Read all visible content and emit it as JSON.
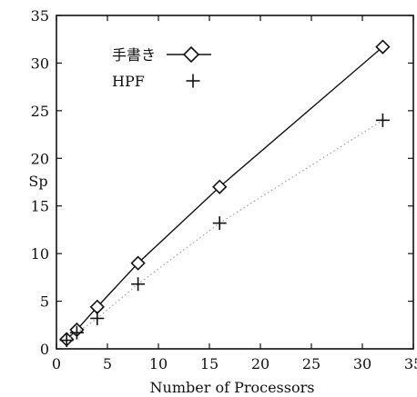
{
  "chart_data": {
    "type": "line",
    "xlabel": "Number of Processors",
    "ylabel": "Sp",
    "xlim": [
      0,
      35
    ],
    "ylim": [
      0,
      35
    ],
    "xticks": [
      0,
      5,
      10,
      15,
      20,
      25,
      30,
      35
    ],
    "yticks": [
      0,
      5,
      10,
      15,
      20,
      25,
      30,
      35
    ],
    "legend_position": "top-left",
    "series": [
      {
        "name": "手書き",
        "marker": "diamond",
        "line": "solid",
        "color": "#111111",
        "x": [
          1,
          2,
          4,
          8,
          16,
          32
        ],
        "y": [
          1.0,
          2.0,
          4.4,
          9.0,
          17.0,
          31.7
        ]
      },
      {
        "name": "HPF",
        "marker": "plus",
        "line": "dotted",
        "color": "#111111",
        "x": [
          1,
          2,
          4,
          8,
          16,
          32
        ],
        "y": [
          0.9,
          1.7,
          3.2,
          6.8,
          13.2,
          24.0
        ]
      }
    ]
  }
}
